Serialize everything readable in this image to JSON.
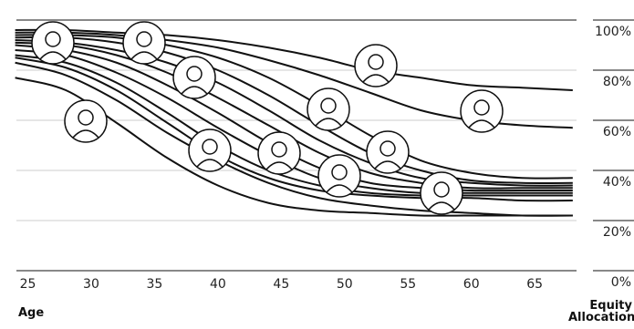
{
  "chart_data": {
    "type": "line",
    "x_label": "Age",
    "y_label": "Equity Allocation",
    "x": [
      24,
      28,
      32,
      36,
      40,
      44,
      48,
      52,
      56,
      60,
      64,
      68
    ],
    "color": "#111111",
    "series": [
      {
        "values": [
          96,
          96,
          95,
          94,
          92,
          89,
          85,
          80,
          77,
          74,
          73,
          72
        ]
      },
      {
        "values": [
          95,
          95,
          94,
          92,
          89,
          84,
          78,
          71,
          64,
          60,
          58,
          57
        ]
      },
      {
        "values": [
          94,
          94,
          93,
          90,
          85,
          77,
          66,
          54,
          44,
          39,
          37,
          37
        ]
      },
      {
        "values": [
          93,
          93,
          91,
          87,
          80,
          70,
          58,
          47,
          40,
          36,
          35,
          35
        ]
      },
      {
        "values": [
          92,
          91,
          88,
          83,
          75,
          64,
          52,
          43,
          37,
          35,
          34,
          34
        ]
      },
      {
        "values": [
          91,
          90,
          86,
          79,
          69,
          58,
          47,
          39,
          35,
          33,
          33,
          33
        ]
      },
      {
        "values": [
          90,
          88,
          83,
          74,
          63,
          51,
          41,
          35,
          33,
          32,
          32,
          32
        ]
      },
      {
        "values": [
          88,
          86,
          79,
          69,
          57,
          46,
          37,
          33,
          31,
          31,
          31,
          31
        ]
      },
      {
        "values": [
          86,
          83,
          75,
          63,
          50,
          40,
          34,
          31,
          30,
          30,
          30,
          30
        ]
      },
      {
        "values": [
          85,
          81,
          72,
          59,
          46,
          37,
          32,
          30,
          29,
          29,
          28,
          28
        ]
      },
      {
        "values": [
          83,
          78,
          68,
          55,
          44,
          35,
          29,
          26,
          24,
          23,
          22,
          22
        ]
      },
      {
        "values": [
          77,
          72,
          59,
          45,
          34,
          27,
          24,
          23,
          22,
          22,
          22,
          22
        ]
      }
    ],
    "xlim": [
      24.1,
      68.3
    ],
    "xticks": [
      25,
      30,
      35,
      40,
      45,
      50,
      55,
      60,
      65
    ],
    "ylim": [
      0,
      100
    ],
    "yticks": [
      {
        "value": 0,
        "label": "0%"
      },
      {
        "value": 20,
        "label": "20%"
      },
      {
        "value": 40,
        "label": "40%"
      },
      {
        "value": 60,
        "label": "60%"
      },
      {
        "value": 80,
        "label": "80%"
      },
      {
        "value": 100,
        "label": "100%"
      }
    ],
    "grid": true
  }
}
